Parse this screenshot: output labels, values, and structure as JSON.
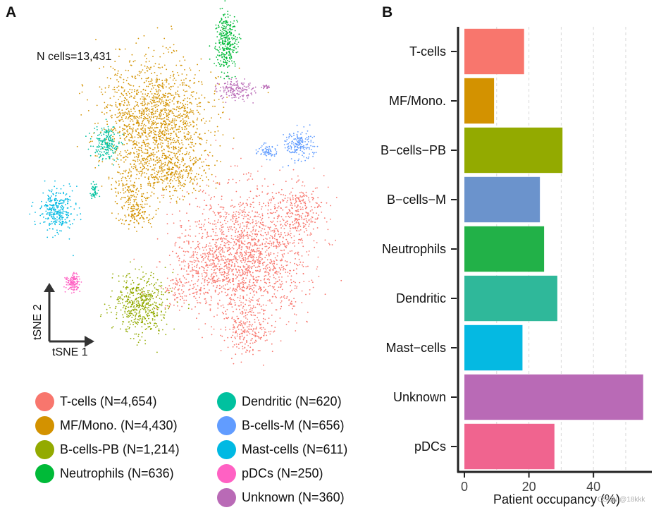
{
  "panels": {
    "a_letter": "A",
    "b_letter": "B"
  },
  "tsne": {
    "n_cells_label": "N cells=13,431",
    "axis_x_label": "tSNE 1",
    "axis_y_label": "tSNE 2"
  },
  "legend": [
    {
      "label": "T-cells (N=4,654)",
      "color": "#F8766D"
    },
    {
      "label": "MF/Mono. (N=4,430)",
      "color": "#D39200"
    },
    {
      "label": "B-cells-PB (N=1,214)",
      "color": "#93AA00"
    },
    {
      "label": "Neutrophils (N=636)",
      "color": "#00BA38"
    },
    {
      "label": "Dendritic (N=620)",
      "color": "#00C19F"
    },
    {
      "label": "B-cells-M (N=656)",
      "color": "#619CFF"
    },
    {
      "label": "Mast-cells (N=611)",
      "color": "#00B9E3"
    },
    {
      "label": "pDCs (N=250)",
      "color": "#FF61C3"
    },
    {
      "label": "Unknown (N=360)",
      "color": "#B96AB6"
    }
  ],
  "chart_data": {
    "type": "bar",
    "orientation": "horizontal",
    "categories": [
      "T-cells",
      "MF/Mono.",
      "B−cells−PB",
      "B−cells−M",
      "Neutrophils",
      "Dendritic",
      "Mast−cells",
      "Unknown",
      "pDCs"
    ],
    "values": [
      18.5,
      9.2,
      30.4,
      23.4,
      24.7,
      28.8,
      18.0,
      55.4,
      27.9
    ],
    "colors": [
      "#F8766D",
      "#D39200",
      "#93AA00",
      "#6B93CC",
      "#22B148",
      "#2FB89A",
      "#05B9E2",
      "#B96AB6",
      "#F0648F"
    ],
    "xlabel": "Patient occupancy (%)",
    "xlim": [
      0,
      57
    ],
    "xticks": [
      0,
      20,
      40
    ],
    "grid": "vertical-dashed"
  },
  "watermark": "CSDN @18kkk"
}
